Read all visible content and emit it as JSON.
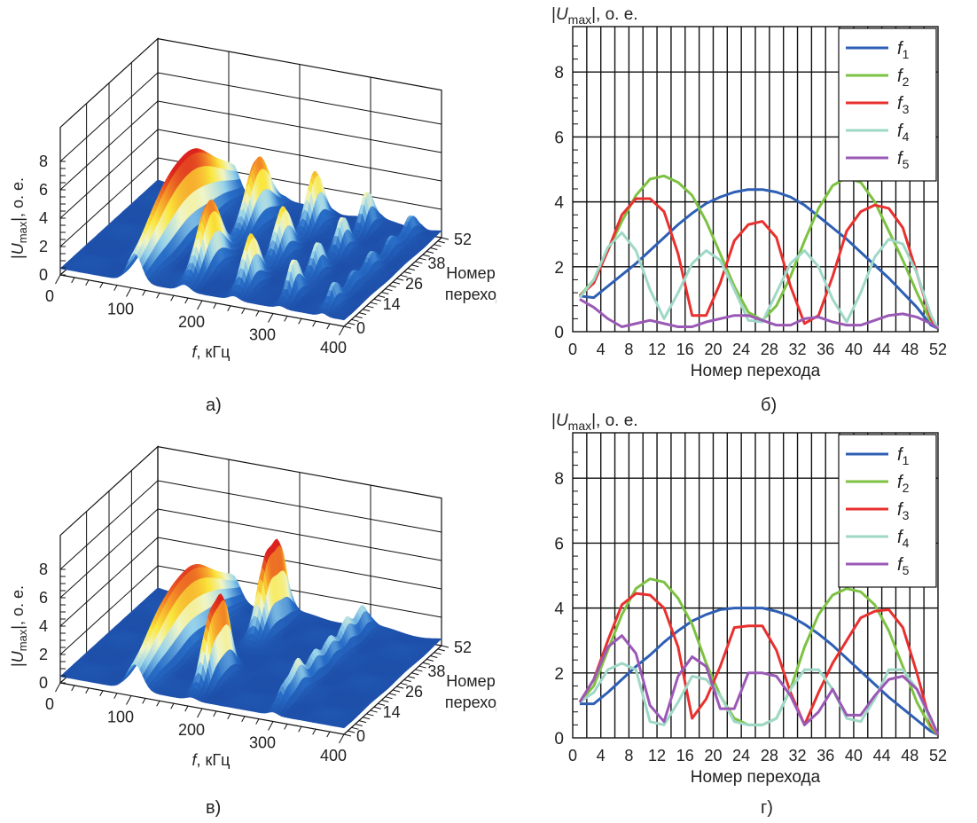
{
  "panels": {
    "a": {
      "caption": "а)"
    },
    "b": {
      "caption": "б)"
    },
    "v": {
      "caption": "в)"
    },
    "g": {
      "caption": "г)"
    }
  },
  "chart_data": [
    {
      "id": "a",
      "type": "surface3d",
      "title": "",
      "zlabel_parts": [
        "|",
        "U",
        "max",
        "|, о. е."
      ],
      "xlabel_italic": "f",
      "xlabel_rest": ", кГц",
      "ylabel_lines": [
        "Номер",
        "перехода"
      ],
      "x_ticks": [
        "0",
        "100",
        "200",
        "300",
        "400"
      ],
      "y_ticks": [
        "0",
        "14",
        "26",
        "38",
        "52"
      ],
      "z_ticks": [
        "0",
        "2",
        "4",
        "6",
        "8"
      ],
      "xlim": [
        0,
        400
      ],
      "ylim": [
        0,
        52
      ],
      "zlim": [
        0,
        8
      ],
      "peaks": [
        {
          "f": 105,
          "n_center": 26,
          "amp": 5.8,
          "n_width": 18,
          "f_width": 10
        },
        {
          "f": 175,
          "n_center": 13,
          "amp": 4.8,
          "n_width": 6,
          "f_width": 8
        },
        {
          "f": 175,
          "n_center": 39,
          "amp": 4.8,
          "n_width": 6,
          "f_width": 8
        },
        {
          "f": 245,
          "n_center": 9,
          "amp": 3.6,
          "n_width": 4,
          "f_width": 7
        },
        {
          "f": 245,
          "n_center": 26,
          "amp": 3.4,
          "n_width": 4,
          "f_width": 7
        },
        {
          "f": 245,
          "n_center": 43,
          "amp": 3.8,
          "n_width": 4,
          "f_width": 7
        },
        {
          "f": 310,
          "n_center": 7,
          "amp": 2.8,
          "n_width": 3,
          "f_width": 6
        },
        {
          "f": 310,
          "n_center": 20,
          "amp": 2.4,
          "n_width": 3,
          "f_width": 6
        },
        {
          "f": 310,
          "n_center": 33,
          "amp": 2.4,
          "n_width": 3,
          "f_width": 6
        },
        {
          "f": 310,
          "n_center": 46,
          "amp": 2.8,
          "n_width": 3,
          "f_width": 6
        },
        {
          "f": 370,
          "n_center": 6,
          "amp": 1.6,
          "n_width": 3,
          "f_width": 5
        },
        {
          "f": 370,
          "n_center": 16,
          "amp": 1.4,
          "n_width": 3,
          "f_width": 5
        },
        {
          "f": 370,
          "n_center": 26,
          "amp": 1.4,
          "n_width": 3,
          "f_width": 5
        },
        {
          "f": 370,
          "n_center": 36,
          "amp": 1.4,
          "n_width": 3,
          "f_width": 5
        },
        {
          "f": 370,
          "n_center": 47,
          "amp": 1.5,
          "n_width": 3,
          "f_width": 5
        }
      ]
    },
    {
      "id": "b",
      "type": "line",
      "ylabel_parts": [
        "|",
        "U",
        "max",
        "|, о. е."
      ],
      "xlabel": "Номер перехода",
      "xlim": [
        0,
        52
      ],
      "ylim": [
        0,
        9.4
      ],
      "x_ticks": [
        0,
        4,
        8,
        12,
        16,
        20,
        24,
        28,
        32,
        36,
        40,
        44,
        48,
        52
      ],
      "y_ticks": [
        0,
        2,
        4,
        6,
        8
      ],
      "x": [
        1,
        3,
        5,
        7,
        9,
        11,
        13,
        15,
        17,
        19,
        21,
        23,
        25,
        27,
        29,
        31,
        33,
        35,
        37,
        39,
        41,
        43,
        45,
        47,
        49,
        51,
        52
      ],
      "series": [
        {
          "name": "f",
          "sub": "1",
          "color": "#2e5fb4",
          "values": [
            1.1,
            1.05,
            1.4,
            1.75,
            2.1,
            2.5,
            2.9,
            3.3,
            3.65,
            3.95,
            4.15,
            4.3,
            4.38,
            4.38,
            4.3,
            4.15,
            3.9,
            3.55,
            3.2,
            2.85,
            2.45,
            2.05,
            1.65,
            1.2,
            0.75,
            0.2,
            0.1
          ]
        },
        {
          "name": "f",
          "sub": "2",
          "color": "#7dc242",
          "values": [
            1.1,
            1.6,
            2.5,
            3.4,
            4.2,
            4.7,
            4.8,
            4.6,
            4.2,
            3.4,
            2.4,
            1.4,
            0.6,
            0.35,
            0.8,
            1.7,
            2.8,
            3.8,
            4.5,
            4.75,
            4.6,
            4.0,
            3.1,
            2.2,
            1.2,
            0.3,
            0.1
          ]
        },
        {
          "name": "f",
          "sub": "3",
          "color": "#e8312f",
          "values": [
            1.1,
            1.5,
            2.5,
            3.6,
            4.1,
            4.1,
            3.7,
            2.4,
            0.5,
            0.5,
            1.5,
            2.8,
            3.3,
            3.4,
            2.9,
            1.4,
            0.25,
            0.5,
            1.7,
            3.1,
            3.7,
            3.9,
            3.8,
            3.2,
            1.8,
            0.4,
            0.1
          ]
        },
        {
          "name": "f",
          "sub": "4",
          "color": "#9fd8c7",
          "values": [
            1.05,
            1.6,
            2.6,
            3.05,
            2.5,
            1.3,
            0.4,
            1.2,
            2.1,
            2.5,
            2.2,
            1.3,
            0.35,
            0.3,
            1.2,
            2.1,
            2.5,
            2.0,
            1.0,
            0.3,
            1.2,
            2.3,
            2.85,
            2.7,
            1.8,
            0.5,
            0.1
          ]
        },
        {
          "name": "f",
          "sub": "5",
          "color": "#9b59b6",
          "values": [
            1.0,
            0.75,
            0.4,
            0.15,
            0.25,
            0.35,
            0.25,
            0.15,
            0.15,
            0.3,
            0.4,
            0.5,
            0.5,
            0.35,
            0.2,
            0.2,
            0.4,
            0.45,
            0.3,
            0.2,
            0.2,
            0.35,
            0.5,
            0.55,
            0.45,
            0.25,
            0.1
          ]
        }
      ],
      "legend_position": "top-right"
    },
    {
      "id": "v",
      "type": "surface3d",
      "title": "",
      "zlabel_parts": [
        "|",
        "U",
        "max",
        "|, о. е."
      ],
      "xlabel_italic": "f",
      "xlabel_rest": ", кГц",
      "ylabel_lines": [
        "Номер",
        "перехода"
      ],
      "x_ticks": [
        "0",
        "100",
        "200",
        "300",
        "400"
      ],
      "y_ticks": [
        "0",
        "14",
        "26",
        "38",
        "52"
      ],
      "z_ticks": [
        "0",
        "2",
        "4",
        "6",
        "8"
      ],
      "xlim": [
        0,
        400
      ],
      "ylim": [
        0,
        52
      ],
      "zlim": [
        0,
        8
      ],
      "peaks": [
        {
          "f": 105,
          "n_center": 26,
          "amp": 5.2,
          "n_width": 18,
          "f_width": 11
        },
        {
          "f": 185,
          "n_center": 10,
          "amp": 4.8,
          "n_width": 4,
          "f_width": 7
        },
        {
          "f": 185,
          "n_center": 17,
          "amp": 4.2,
          "n_width": 3,
          "f_width": 7
        },
        {
          "f": 185,
          "n_center": 40,
          "amp": 5.4,
          "n_width": 4,
          "f_width": 8
        },
        {
          "f": 185,
          "n_center": 47,
          "amp": 4.4,
          "n_width": 3,
          "f_width": 7
        },
        {
          "f": 300,
          "n_center": 6,
          "amp": 1.6,
          "n_width": 3,
          "f_width": 6
        },
        {
          "f": 300,
          "n_center": 13,
          "amp": 2.2,
          "n_width": 3,
          "f_width": 6
        },
        {
          "f": 300,
          "n_center": 22,
          "amp": 2.0,
          "n_width": 3,
          "f_width": 6
        },
        {
          "f": 300,
          "n_center": 30,
          "amp": 1.8,
          "n_width": 3,
          "f_width": 6
        },
        {
          "f": 300,
          "n_center": 39,
          "amp": 2.2,
          "n_width": 3,
          "f_width": 6
        },
        {
          "f": 300,
          "n_center": 47,
          "amp": 2.0,
          "n_width": 3,
          "f_width": 6
        }
      ]
    },
    {
      "id": "g",
      "type": "line",
      "ylabel_parts": [
        "|",
        "U",
        "max",
        "|, о. е."
      ],
      "xlabel": "Номер перехода",
      "xlim": [
        0,
        52
      ],
      "ylim": [
        0,
        9.4
      ],
      "x_ticks": [
        0,
        4,
        8,
        12,
        16,
        20,
        24,
        28,
        32,
        36,
        40,
        44,
        48,
        52
      ],
      "y_ticks": [
        0,
        2,
        4,
        6,
        8
      ],
      "x": [
        1,
        3,
        5,
        7,
        9,
        11,
        13,
        15,
        17,
        19,
        21,
        23,
        25,
        27,
        29,
        31,
        33,
        35,
        37,
        39,
        41,
        43,
        45,
        47,
        49,
        51,
        52
      ],
      "series": [
        {
          "name": "f",
          "sub": "1",
          "color": "#2e5fb4",
          "values": [
            1.05,
            1.05,
            1.4,
            1.8,
            2.2,
            2.55,
            2.95,
            3.3,
            3.6,
            3.8,
            3.95,
            4.0,
            4.0,
            4.0,
            3.9,
            3.75,
            3.5,
            3.2,
            2.85,
            2.45,
            2.05,
            1.65,
            1.25,
            0.9,
            0.55,
            0.2,
            0.1
          ]
        },
        {
          "name": "f",
          "sub": "2",
          "color": "#7dc242",
          "values": [
            1.1,
            1.6,
            2.7,
            3.8,
            4.6,
            4.9,
            4.8,
            4.3,
            3.5,
            2.3,
            1.3,
            0.6,
            0.4,
            0.4,
            0.6,
            1.5,
            2.8,
            3.8,
            4.4,
            4.6,
            4.5,
            4.1,
            3.3,
            2.2,
            1.1,
            0.3,
            0.1
          ]
        },
        {
          "name": "f",
          "sub": "3",
          "color": "#e8312f",
          "values": [
            1.1,
            1.8,
            3.0,
            4.1,
            4.45,
            4.4,
            4.0,
            2.8,
            0.6,
            1.2,
            2.2,
            3.4,
            3.45,
            3.45,
            2.7,
            1.4,
            0.4,
            1.4,
            2.3,
            3.0,
            3.7,
            3.9,
            3.95,
            3.4,
            2.0,
            0.4,
            0.1
          ]
        },
        {
          "name": "f",
          "sub": "4",
          "color": "#9fd8c7",
          "values": [
            1.1,
            1.4,
            2.1,
            2.3,
            2.1,
            0.5,
            0.4,
            1.1,
            1.9,
            1.8,
            1.3,
            0.5,
            0.4,
            0.4,
            0.6,
            1.5,
            2.1,
            2.1,
            1.5,
            0.6,
            0.5,
            1.2,
            2.1,
            2.1,
            1.5,
            0.5,
            0.1
          ]
        },
        {
          "name": "f",
          "sub": "5",
          "color": "#9b59b6",
          "values": [
            1.1,
            1.8,
            2.8,
            3.15,
            2.6,
            1.0,
            0.5,
            1.9,
            2.5,
            2.2,
            0.9,
            0.9,
            2.0,
            2.0,
            1.9,
            1.3,
            0.4,
            0.8,
            1.5,
            0.7,
            0.7,
            1.3,
            1.8,
            1.9,
            1.5,
            0.6,
            0.1
          ]
        }
      ],
      "legend_position": "top-right"
    }
  ]
}
